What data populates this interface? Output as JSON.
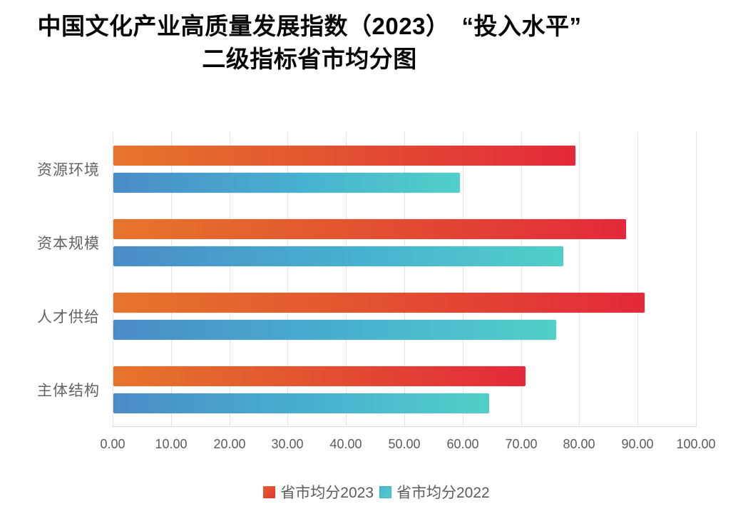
{
  "title": {
    "line1": "中国文化产业高质量发展指数（2023）　“投入水平”",
    "line2": "二级指标省市均分图"
  },
  "chart_data": {
    "type": "bar",
    "orientation": "horizontal",
    "title": "中国文化产业高质量发展指数（2023）“投入水平” 二级指标省市均分图",
    "categories": [
      "资源环境",
      "资本规模",
      "人才供给",
      "主体结构"
    ],
    "series": [
      {
        "name": "省市均分2023",
        "key": "s2023",
        "values": [
          79.2,
          87.9,
          91.1,
          70.7
        ],
        "color_start": "#e6752c",
        "color_end": "#e3293b"
      },
      {
        "name": "省市均分2022",
        "key": "s2022",
        "values": [
          59.4,
          77.2,
          75.9,
          64.4
        ],
        "color_start": "#4a8cc8",
        "color_end": "#52cfc9"
      }
    ],
    "xlim": [
      0,
      100
    ],
    "x_ticks": [
      "0.00",
      "10.00",
      "20.00",
      "30.00",
      "40.00",
      "50.00",
      "60.00",
      "70.00",
      "80.00",
      "90.00",
      "100.00"
    ],
    "xlabel": "",
    "ylabel": "",
    "grid": "vertical",
    "gridline_color": "#e4e4e4",
    "legend_position": "bottom"
  },
  "legend": {
    "items": [
      {
        "label": "省市均分2023"
      },
      {
        "label": "省市均分2022"
      }
    ]
  }
}
